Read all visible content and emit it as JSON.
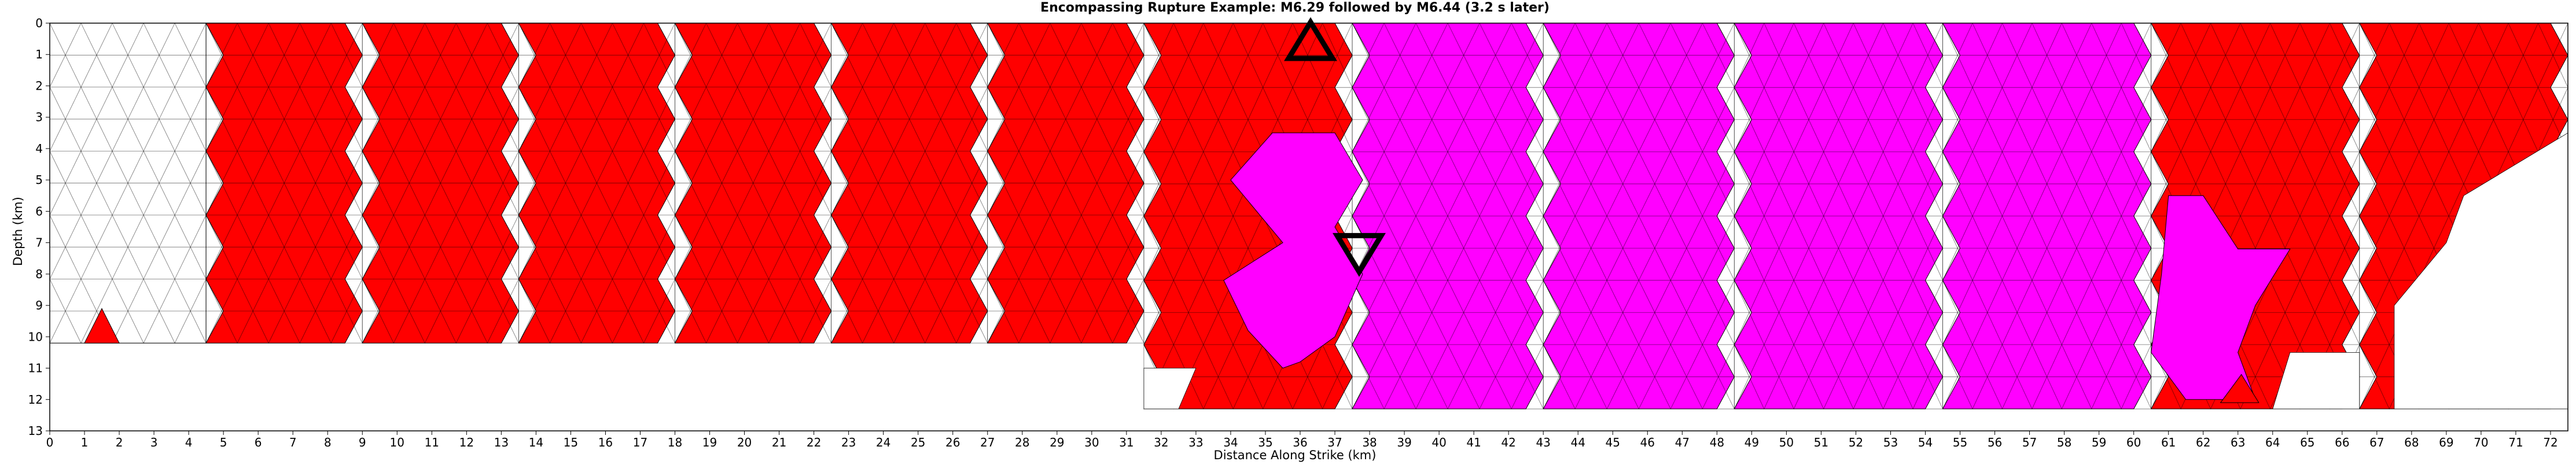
{
  "chart_data": {
    "type": "heatmap",
    "title": "Encompassing Rupture Example: M6.29 followed by M6.44 (3.2 s later)",
    "xlabel": "Distance Along Strike (km)",
    "ylabel": "Depth (km)",
    "xlim": [
      0,
      72.5
    ],
    "ylim": [
      13,
      0
    ],
    "xticks": [
      0,
      1,
      2,
      3,
      4,
      5,
      6,
      7,
      8,
      9,
      10,
      11,
      12,
      13,
      14,
      15,
      16,
      17,
      18,
      19,
      20,
      21,
      22,
      23,
      24,
      25,
      26,
      27,
      28,
      29,
      30,
      31,
      32,
      33,
      34,
      35,
      36,
      37,
      38,
      39,
      40,
      41,
      42,
      43,
      44,
      45,
      46,
      47,
      48,
      49,
      50,
      51,
      52,
      53,
      54,
      55,
      56,
      57,
      58,
      59,
      60,
      61,
      62,
      63,
      64,
      65,
      66,
      67,
      68,
      69,
      70,
      71,
      72
    ],
    "yticks": [
      0,
      1,
      2,
      3,
      4,
      5,
      6,
      7,
      8,
      9,
      10,
      11,
      12,
      13
    ],
    "grid": false,
    "colors": {
      "first_event": "#ff0000",
      "second_event": "#ff00ff",
      "unruptured": "#ffffff",
      "edge": "#000000"
    },
    "legend_entries": [],
    "fault_sections": [
      {
        "x_start": 0.0,
        "x_end": 4.5,
        "depth_top": 0,
        "depth_bottom": 10.2,
        "fill": "none",
        "notch": "none"
      },
      {
        "x_start": 4.5,
        "x_end": 9.0,
        "depth_top": 0,
        "depth_bottom": 10.2,
        "fill": "first_event",
        "notch": "zigzag"
      },
      {
        "x_start": 9.0,
        "x_end": 13.5,
        "depth_top": 0,
        "depth_bottom": 10.2,
        "fill": "first_event",
        "notch": "zigzag"
      },
      {
        "x_start": 13.5,
        "x_end": 18.0,
        "depth_top": 0,
        "depth_bottom": 10.2,
        "fill": "first_event",
        "notch": "zigzag"
      },
      {
        "x_start": 18.0,
        "x_end": 22.5,
        "depth_top": 0,
        "depth_bottom": 10.2,
        "fill": "first_event",
        "notch": "zigzag"
      },
      {
        "x_start": 22.5,
        "x_end": 27.0,
        "depth_top": 0,
        "depth_bottom": 10.2,
        "fill": "first_event",
        "notch": "zigzag"
      },
      {
        "x_start": 27.0,
        "x_end": 31.5,
        "depth_top": 0,
        "depth_bottom": 10.2,
        "fill": "first_event",
        "notch": "zigzag"
      },
      {
        "x_start": 31.5,
        "x_end": 37.5,
        "depth_top": 0,
        "depth_bottom": 12.3,
        "fill": "first_event",
        "notch": "zigzag"
      },
      {
        "x_start": 37.5,
        "x_end": 43.0,
        "depth_top": 0,
        "depth_bottom": 12.3,
        "fill": "second_event",
        "notch": "zigzag"
      },
      {
        "x_start": 43.0,
        "x_end": 48.5,
        "depth_top": 0,
        "depth_bottom": 12.3,
        "fill": "second_event",
        "notch": "zigzag"
      },
      {
        "x_start": 48.5,
        "x_end": 54.5,
        "depth_top": 0,
        "depth_bottom": 12.3,
        "fill": "second_event",
        "notch": "zigzag"
      },
      {
        "x_start": 54.5,
        "x_end": 60.5,
        "depth_top": 0,
        "depth_bottom": 12.3,
        "fill": "second_event",
        "notch": "zigzag"
      },
      {
        "x_start": 60.5,
        "x_end": 66.5,
        "depth_top": 0,
        "depth_bottom": 12.3,
        "fill": "first_event",
        "notch": "zigzag"
      },
      {
        "x_start": 66.5,
        "x_end": 72.5,
        "depth_top": 0,
        "depth_bottom": 12.3,
        "fill": "first_event",
        "notch": "zigzag"
      }
    ],
    "second_event_intrusions": [
      {
        "points": [
          [
            35.2,
            3.5
          ],
          [
            37.0,
            3.5
          ],
          [
            37.8,
            5.0
          ],
          [
            37.0,
            6.5
          ],
          [
            37.8,
            8.0
          ],
          [
            37.0,
            10.0
          ],
          [
            36.0,
            10.8
          ],
          [
            35.5,
            11.0
          ],
          [
            34.5,
            9.8
          ],
          [
            33.8,
            8.2
          ],
          [
            35.5,
            7.0
          ],
          [
            34.0,
            5.0
          ]
        ]
      },
      {
        "points": [
          [
            61.0,
            5.5
          ],
          [
            62.0,
            5.5
          ],
          [
            63.0,
            7.2
          ],
          [
            64.5,
            7.2
          ],
          [
            63.5,
            9.0
          ],
          [
            63.0,
            10.5
          ],
          [
            63.5,
            12.0
          ],
          [
            61.5,
            12.0
          ],
          [
            60.5,
            10.5
          ],
          [
            60.8,
            8.0
          ]
        ]
      }
    ],
    "first_event_patches": [
      {
        "points": [
          [
            1.0,
            10.2
          ],
          [
            1.5,
            9.1
          ],
          [
            2.0,
            10.2
          ]
        ]
      },
      {
        "points": [
          [
            62.5,
            12.1
          ],
          [
            63.1,
            11.2
          ],
          [
            63.6,
            12.1
          ]
        ]
      }
    ],
    "unruptured_patches": [
      {
        "points": [
          [
            69.5,
            5.5
          ],
          [
            72.5,
            3.5
          ],
          [
            72.5,
            12.3
          ],
          [
            67.5,
            12.3
          ],
          [
            67.5,
            9.0
          ],
          [
            69.0,
            7.0
          ]
        ]
      },
      {
        "points": [
          [
            31.5,
            11.0
          ],
          [
            33.0,
            11.0
          ],
          [
            32.5,
            12.3
          ],
          [
            31.5,
            12.3
          ]
        ]
      },
      {
        "points": [
          [
            64.5,
            10.5
          ],
          [
            66.5,
            10.5
          ],
          [
            66.5,
            12.3
          ],
          [
            64.0,
            12.3
          ]
        ]
      }
    ],
    "hypocenters": [
      {
        "event": "first_event",
        "marker": "triangle-up",
        "x": 36.3,
        "depth": 0.6
      },
      {
        "event": "second_event",
        "marker": "triangle-down",
        "x": 37.7,
        "depth": 7.3
      }
    ]
  }
}
